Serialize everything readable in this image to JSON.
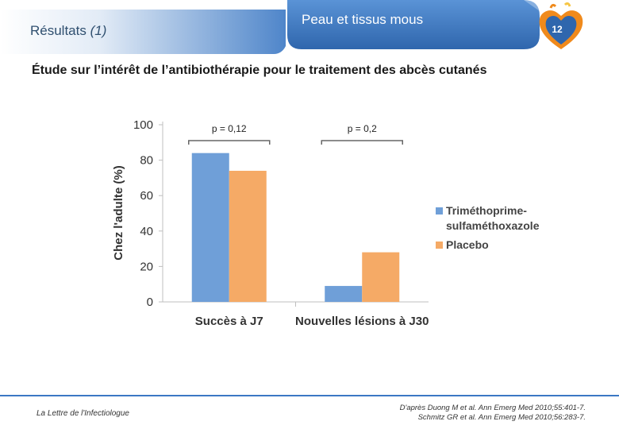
{
  "header": {
    "section_prefix": "Résultats ",
    "section_number": "(1)",
    "tab_title": "Peau et tissus mous",
    "page_number": "12"
  },
  "subtitle": "Étude sur l’intérêt de l’antibiothérapie pour le traitement des abcès cutanés",
  "colors": {
    "series1": "#6f9fd8",
    "series2": "#f5aa66",
    "header_blue": "#3b78c4",
    "badge_orange": "#f08a1c"
  },
  "chart_data": {
    "type": "bar",
    "ylabel": "Chez l'adulte (%)",
    "xlabel": "",
    "ylim": [
      0,
      100
    ],
    "yticks": [
      0,
      20,
      40,
      60,
      80,
      100
    ],
    "categories": [
      "Succès à J7",
      "Nouvelles lésions à J30"
    ],
    "series": [
      {
        "name": "Triméthoprime-sulfaméthoxazole",
        "legend_lines": [
          "Triméthoprime-",
          "sulfaméthoxazole"
        ],
        "values": [
          84,
          9
        ]
      },
      {
        "name": "Placebo",
        "legend_lines": [
          "Placebo"
        ],
        "values": [
          74,
          28
        ]
      }
    ],
    "annotations": [
      {
        "text": "p = 0,12",
        "category_index": 0
      },
      {
        "text": "p = 0,2",
        "category_index": 1
      }
    ],
    "legend_position": "right",
    "grid": false
  },
  "footer": {
    "left": "La Lettre de l'Infectiologue",
    "right_line1": "D'après Duong M et al. Ann Emerg Med 2010;55:401-7.",
    "right_line2": "Schmitz GR et al. Ann Emerg Med 2010;56:283-7."
  }
}
